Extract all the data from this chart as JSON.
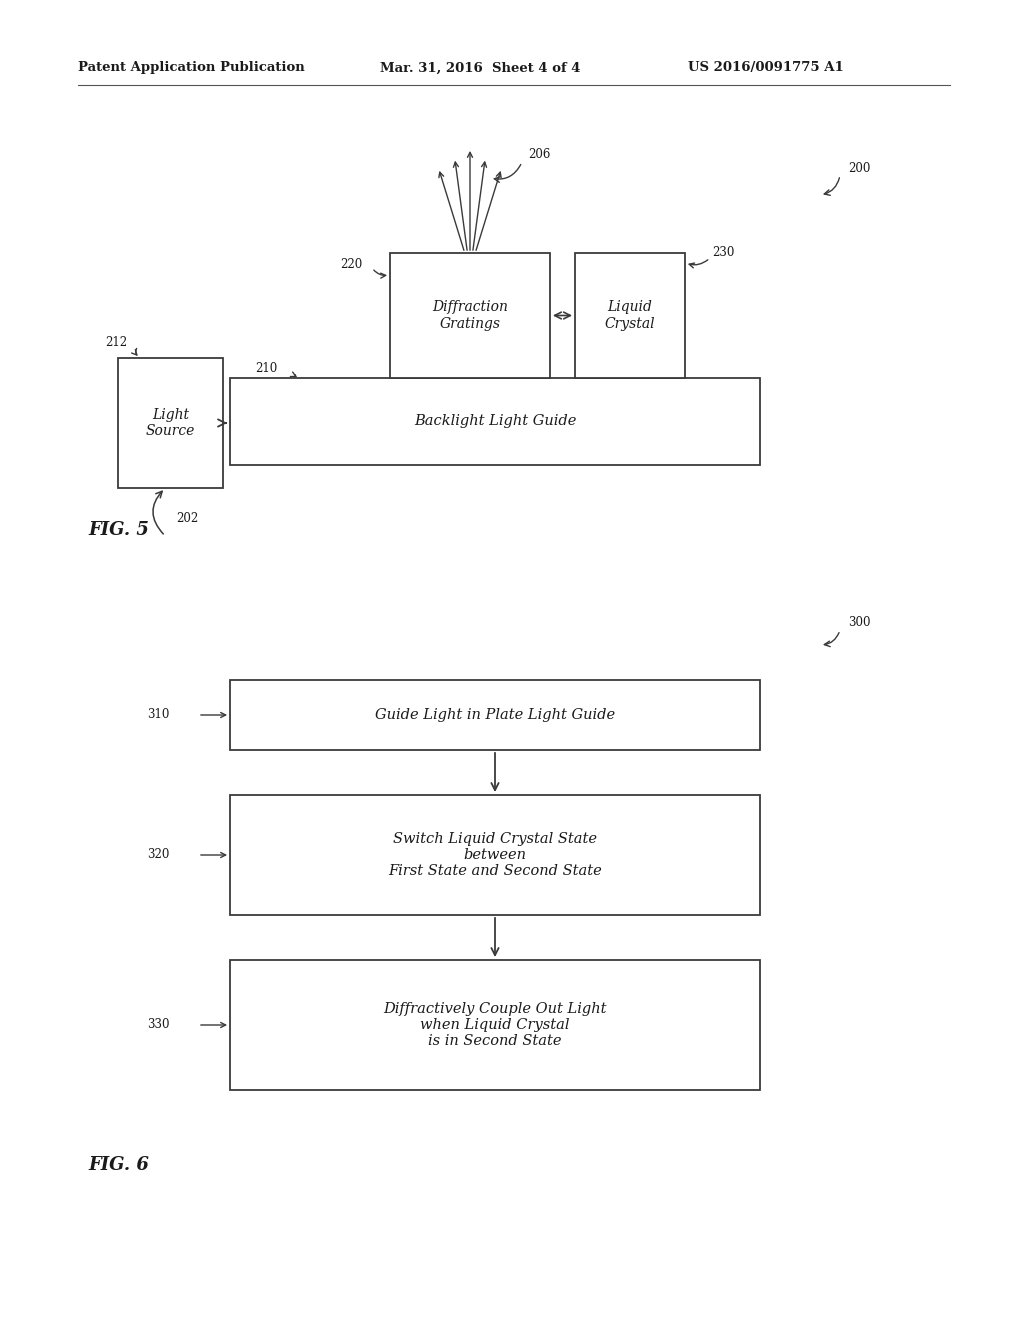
{
  "bg_color": "#ffffff",
  "text_color": "#1a1a1a",
  "header_left": "Patent Application Publication",
  "header_mid": "Mar. 31, 2016  Sheet 4 of 4",
  "header_right": "US 2016/0091775 A1",
  "fig5_label": "FIG. 5",
  "fig6_label": "FIG. 6",
  "fig5_200": "200",
  "fig5_206": "206",
  "fig5_220": "220",
  "fig5_230": "230",
  "fig5_212": "212",
  "fig5_210": "210",
  "fig5_202": "202",
  "fig6_300": "300",
  "fig6_310": "310",
  "fig6_320": "320",
  "fig6_330": "330",
  "fig6_box1_text": "Guide Light in Plate Light Guide",
  "fig6_box2_text": "Switch Liquid Crystal State\nbetween\nFirst State and Second State",
  "fig6_box3_text": "Diffractively Couple Out Light\nwhen Liquid Crystal\nis in Second State"
}
